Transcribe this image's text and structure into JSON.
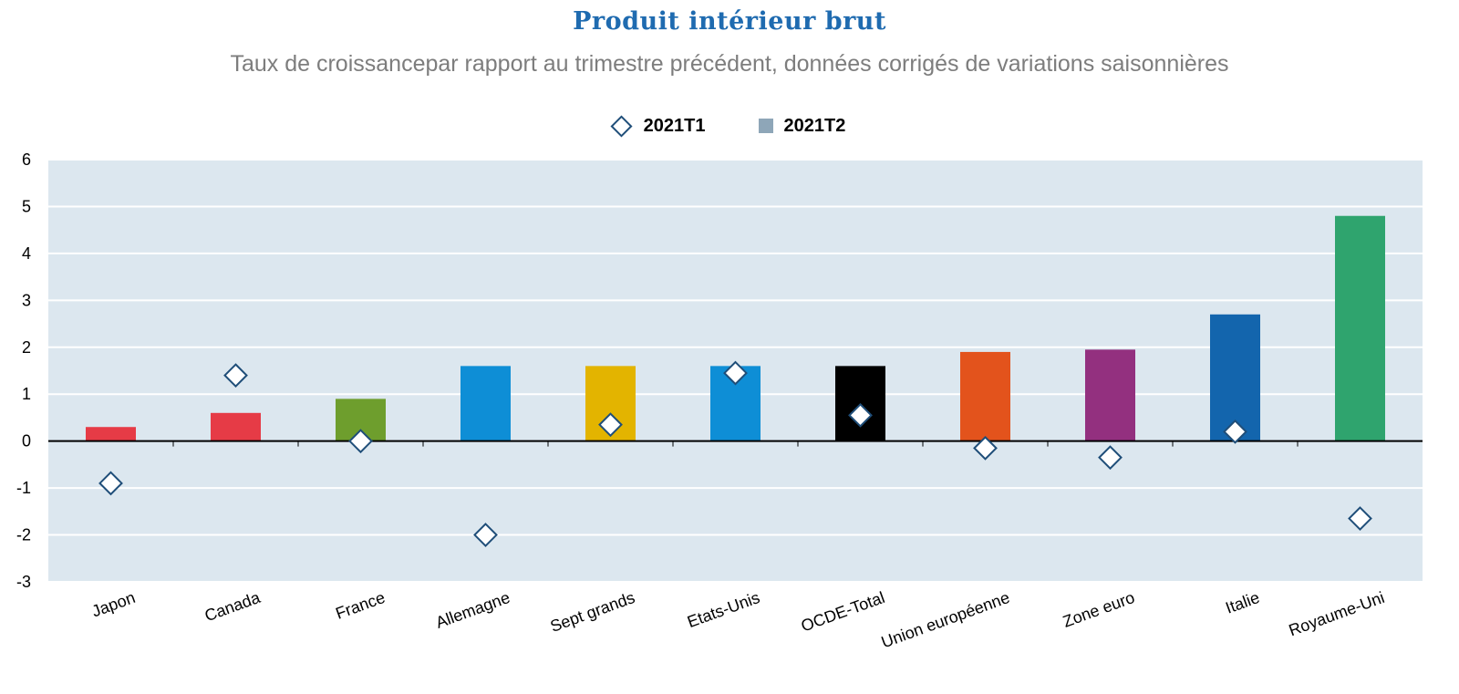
{
  "chart_data": {
    "type": "bar",
    "title": "Produit intérieur brut",
    "subtitle": "Taux de croissancepar rapport au trimestre précédent, données corrigés de variations saisonnières",
    "categories": [
      "Japon",
      "Canada",
      "France",
      "Allemagne",
      "Sept grands",
      "Etats-Unis",
      "OCDE-Total",
      "Union européenne",
      "Zone euro",
      "Italie",
      "Royaume-Uni"
    ],
    "series": [
      {
        "name": "2021T1",
        "marker": "diamond",
        "values": [
          -0.9,
          1.4,
          0.0,
          -2.0,
          0.35,
          1.45,
          0.55,
          -0.15,
          -0.35,
          0.2,
          -1.65
        ]
      },
      {
        "name": "2021T2",
        "marker": "bar",
        "values": [
          0.3,
          0.6,
          0.9,
          1.6,
          1.6,
          1.6,
          1.6,
          1.9,
          1.95,
          2.7,
          4.8
        ]
      }
    ],
    "bar_colors": [
      "#e63b46",
      "#e63b46",
      "#6e9e2d",
      "#0e8ed6",
      "#e3b400",
      "#0e8ed6",
      "#000000",
      "#e3531c",
      "#93307f",
      "#1365ad",
      "#2fa46e"
    ],
    "legend_swatch_color": "#8ea6b8",
    "diamond_stroke": "#1f4e79",
    "plot_background": "#dce7ef",
    "ylim": [
      -3,
      6
    ],
    "yticks": [
      "6",
      "5",
      "4",
      "3",
      "2",
      "1",
      "0",
      "-1",
      "-2",
      "-3"
    ],
    "grid": true,
    "legend_position": "top-center",
    "xlabel": "",
    "ylabel": ""
  }
}
